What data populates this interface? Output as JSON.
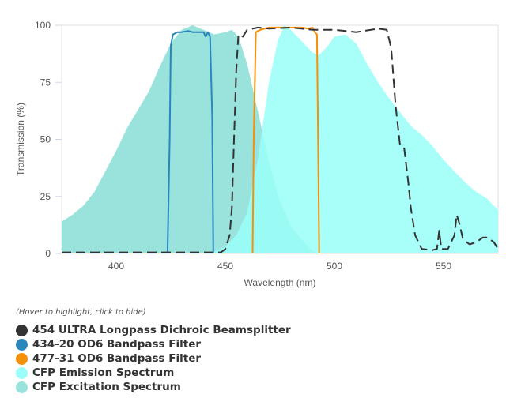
{
  "chart_data": {
    "type": "area",
    "xlabel": "Wavelength (nm)",
    "ylabel": "Transmission (%)",
    "xlim": [
      375,
      575
    ],
    "ylim": [
      0,
      100
    ],
    "xticks": [
      400,
      450,
      500,
      550
    ],
    "yticks": [
      0,
      25,
      50,
      75,
      100
    ],
    "grid": false,
    "legend_placement": "bottom",
    "legend_hint": "(Hover to highlight, click to hide)",
    "series": [
      {
        "name": "CFP Excitation Spectrum",
        "color": "#99e3dc",
        "style": "fill",
        "x": [
          375,
          380,
          385,
          390,
          395,
          400,
          405,
          410,
          415,
          420,
          425,
          430,
          435,
          440,
          445,
          450,
          453,
          456,
          460,
          465,
          470,
          475,
          480,
          485,
          488,
          490,
          495,
          575
        ],
        "y": [
          14,
          17,
          21,
          27,
          36,
          45,
          55,
          63,
          71,
          82,
          92,
          98,
          100,
          98,
          96,
          97,
          98,
          95,
          83,
          62,
          40,
          23,
          12,
          6,
          3,
          1,
          0,
          0
        ]
      },
      {
        "name": "CFP Emission Spectrum",
        "color": "#99fff8",
        "style": "fill",
        "x": [
          375,
          440,
          445,
          450,
          455,
          460,
          465,
          470,
          474,
          477,
          480,
          485,
          490,
          493,
          497,
          500,
          505,
          510,
          515,
          520,
          525,
          530,
          535,
          540,
          545,
          550,
          555,
          560,
          565,
          570,
          575
        ],
        "y": [
          0,
          0,
          1,
          3,
          8,
          18,
          42,
          75,
          93,
          100,
          98,
          93,
          88,
          87,
          91,
          95,
          96,
          92,
          83,
          75,
          68,
          62,
          56,
          52,
          47,
          41,
          36,
          31,
          27,
          24,
          19
        ]
      },
      {
        "name": "434-20 OD6 Bandpass Filter",
        "color": "#2a86bb",
        "style": "line",
        "x": [
          375,
          423.5,
          424.5,
          425,
          426,
          428,
          430,
          433,
          435,
          438,
          440,
          441,
          442,
          443,
          444,
          444.5,
          575
        ],
        "y": [
          0,
          0,
          50,
          91,
          96,
          97,
          97,
          97.5,
          97,
          97,
          97,
          95,
          97,
          95,
          60,
          0,
          0
        ]
      },
      {
        "name": "477-31 OD6 Bandpass Filter",
        "color": "#f5900a",
        "style": "line",
        "x": [
          375,
          462.5,
          463,
          464,
          466,
          470,
          475,
          480,
          485,
          488,
          490,
          491,
          492,
          492.5,
          493,
          575
        ],
        "y": [
          0,
          0,
          50,
          97,
          98,
          99,
          99,
          99,
          99,
          98.5,
          99,
          97,
          96,
          50,
          0,
          0
        ]
      },
      {
        "name": "454 ULTRA Longpass Dichroic Beamsplitter",
        "color": "#333333",
        "style": "dashed",
        "x": [
          375,
          448,
          450,
          452,
          453,
          454,
          455,
          456,
          458,
          460,
          465,
          470,
          480,
          490,
          500,
          510,
          520,
          524,
          526,
          528,
          530,
          532,
          534,
          535,
          537,
          540,
          545,
          547,
          548,
          549,
          552,
          555,
          556,
          557,
          559,
          562,
          565,
          568,
          570,
          573,
          575
        ],
        "y": [
          0.5,
          0.5,
          2,
          8,
          20,
          50,
          80,
          96,
          95,
          98,
          99,
          98.5,
          99,
          98,
          98,
          97,
          98.5,
          98,
          90,
          65,
          48,
          46,
          30,
          20,
          8,
          2,
          1.5,
          2,
          10,
          2,
          2,
          8,
          17,
          14,
          6,
          4,
          5,
          7,
          7,
          5,
          2
        ]
      }
    ]
  },
  "legend_order": [
    4,
    2,
    3,
    1,
    0
  ]
}
